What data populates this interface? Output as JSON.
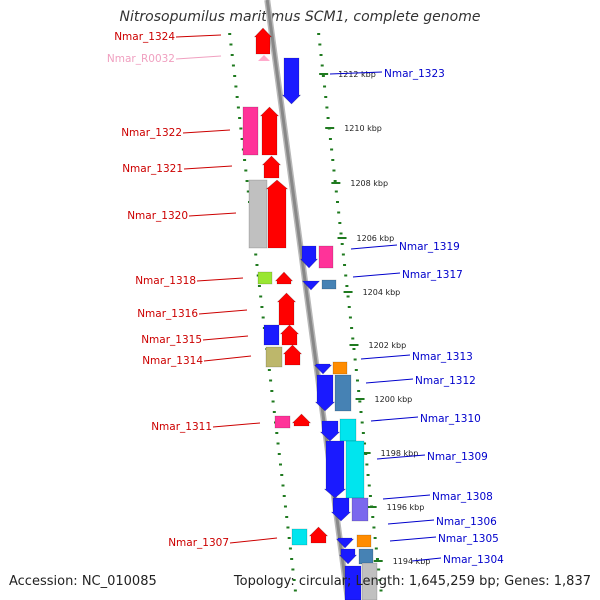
{
  "title": "Nitrosopumilus maritimus SCM1, complete genome",
  "footer": {
    "accession": "Accession: NC_010085",
    "topology": "Topology: circular; Length: 1,645,259 bp; Genes: 1,837"
  },
  "colors": {
    "backbone": "#888888",
    "ruler": "#1f7a1f",
    "left_label": "#cc0000",
    "left_label_rna": "#f0a0c0",
    "right_label": "#0000cc"
  },
  "scale_ticks": [
    {
      "label": "1212 kbp"
    },
    {
      "label": "1210 kbp"
    },
    {
      "label": "1208 kbp"
    },
    {
      "label": "1206 kbp"
    },
    {
      "label": "1204 kbp"
    },
    {
      "label": "1202 kbp"
    },
    {
      "label": "1200 kbp"
    },
    {
      "label": "1198 kbp"
    },
    {
      "label": "1196 kbp"
    },
    {
      "label": "1194 kbp"
    }
  ],
  "left_labels": [
    {
      "text": "Nmar_1324",
      "kind": "gene"
    },
    {
      "text": "Nmar_R0032",
      "kind": "rna"
    },
    {
      "text": "Nmar_1322",
      "kind": "gene"
    },
    {
      "text": "Nmar_1321",
      "kind": "gene"
    },
    {
      "text": "Nmar_1320",
      "kind": "gene"
    },
    {
      "text": "Nmar_1318",
      "kind": "gene"
    },
    {
      "text": "Nmar_1316",
      "kind": "gene"
    },
    {
      "text": "Nmar_1315",
      "kind": "gene"
    },
    {
      "text": "Nmar_1314",
      "kind": "gene"
    },
    {
      "text": "Nmar_1311",
      "kind": "gene"
    },
    {
      "text": "Nmar_1307",
      "kind": "gene"
    }
  ],
  "right_labels": [
    {
      "text": "Nmar_1323"
    },
    {
      "text": "Nmar_1319"
    },
    {
      "text": "Nmar_1317"
    },
    {
      "text": "Nmar_1313"
    },
    {
      "text": "Nmar_1312"
    },
    {
      "text": "Nmar_1310"
    },
    {
      "text": "Nmar_1309"
    },
    {
      "text": "Nmar_1308"
    },
    {
      "text": "Nmar_1306"
    },
    {
      "text": "Nmar_1305"
    },
    {
      "text": "Nmar_1304"
    }
  ],
  "gene_colors": {
    "red": "#ff0000",
    "pink": "#ff3399",
    "grey": "#c0c0c0",
    "lime": "#99e633",
    "khaki": "#bdb76b",
    "blue": "#1a1aff",
    "steel": "#4682b4",
    "orange": "#ff8c00",
    "cyan": "#00e5ee",
    "slate": "#7b68ee",
    "rna": "#ffaacc"
  }
}
